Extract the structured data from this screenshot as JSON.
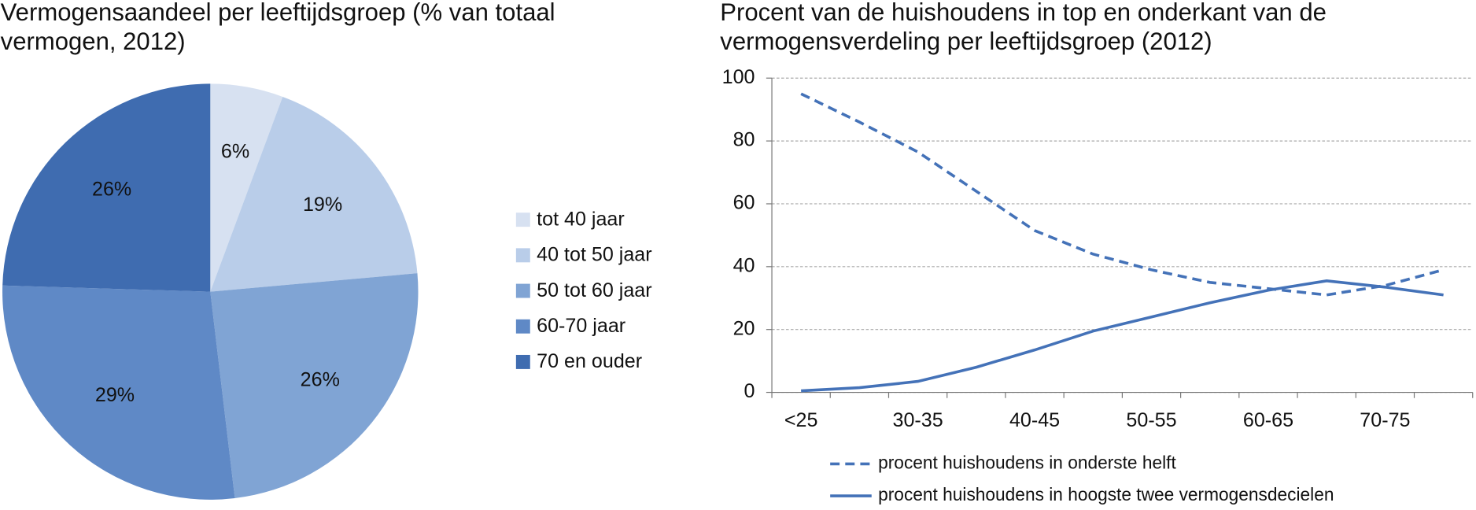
{
  "chart_data": [
    {
      "type": "pie",
      "title": "Vermogensaandeel per leeftijdsgroep (% van totaal vermogen, 2012)",
      "title_lines": [
        "Vermogensaandeel per leeftijdsgroep (% van totaal",
        "vermogen, 2012)"
      ],
      "categories": [
        "tot 40 jaar",
        "40 tot 50 jaar",
        "50 tot 60 jaar",
        "60-70 jaar",
        "70 en ouder"
      ],
      "values": [
        6,
        19,
        26,
        29,
        26
      ],
      "value_labels": [
        "6%",
        "19%",
        "26%",
        "29%",
        "26%"
      ],
      "colors": [
        "#d7e1f1",
        "#b9cde9",
        "#80a4d4",
        "#5f89c6",
        "#3f6cb0"
      ]
    },
    {
      "type": "line",
      "title": "Procent van de huishoudens in top en onderkant van de vermogensverdeling per leeftijdsgroep (2012)",
      "title_lines": [
        "Procent van de huishoudens in top en onderkant van de",
        "vermogensverdeling per leeftijdsgroep (2012)"
      ],
      "categories": [
        "<25",
        null,
        "30-35",
        null,
        "40-45",
        null,
        "50-55",
        null,
        "60-65",
        null,
        "70-75",
        null
      ],
      "series": [
        {
          "name": "procent huishoudens in onderste helft",
          "color": "#4472b8",
          "dashed": true,
          "values": [
            95,
            86,
            76.5,
            64,
            51.5,
            44,
            39,
            35,
            33,
            31,
            34,
            39
          ]
        },
        {
          "name": "procent huishoudens in hoogste twee vermogensdecielen",
          "color": "#4472b8",
          "dashed": false,
          "values": [
            0.5,
            1.5,
            3.5,
            8,
            13.5,
            19.5,
            24,
            28.5,
            32.5,
            35.5,
            33.5,
            31
          ]
        }
      ],
      "ylim": [
        0,
        100
      ],
      "yticks": [
        0,
        20,
        40,
        60,
        80,
        100
      ],
      "grid": true
    }
  ]
}
